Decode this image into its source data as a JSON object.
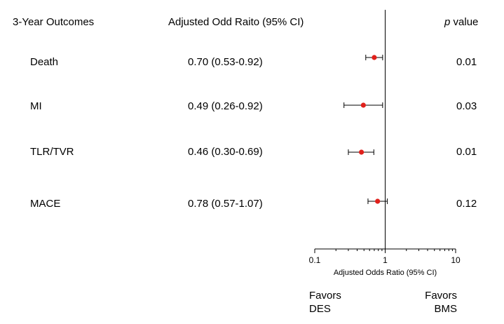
{
  "headers": {
    "outcomes": "3-Year Outcomes",
    "ratio": "Adjusted Odd Raito (95% CI)",
    "p_italic": "p",
    "p_rest": "value"
  },
  "rows": [
    {
      "label": "Death",
      "ci_text": "0.70 (0.53-0.92)",
      "p": "0.01"
    },
    {
      "label": "MI",
      "ci_text": "0.49 (0.26-0.92)",
      "p": "0.03"
    },
    {
      "label": "TLR/TVR",
      "ci_text": "0.46 (0.30-0.69)",
      "p": "0.01"
    },
    {
      "label": "MACE",
      "ci_text": "0.78 (0.57-1.07)",
      "p": "0.12"
    }
  ],
  "favors": {
    "left_line1": "Favors",
    "left_line2": "DES",
    "right_line1": "Favors",
    "right_line2": "BMS"
  },
  "colors": {
    "point": "#e0201b",
    "line": "#000000"
  },
  "chart_data": {
    "type": "forest",
    "xscale": "log",
    "xlim": [
      0.1,
      10
    ],
    "reference_line": 1,
    "xticks": [
      "0.1",
      "1",
      "10"
    ],
    "xlabel": "Adjusted Odds Ratio (95% CI)",
    "categories": [
      "Death",
      "MI",
      "TLR/TVR",
      "MACE"
    ],
    "estimates": [
      0.7,
      0.49,
      0.46,
      0.78
    ],
    "ci_low": [
      0.53,
      0.26,
      0.3,
      0.57
    ],
    "ci_high": [
      0.92,
      0.92,
      0.69,
      1.07
    ]
  }
}
